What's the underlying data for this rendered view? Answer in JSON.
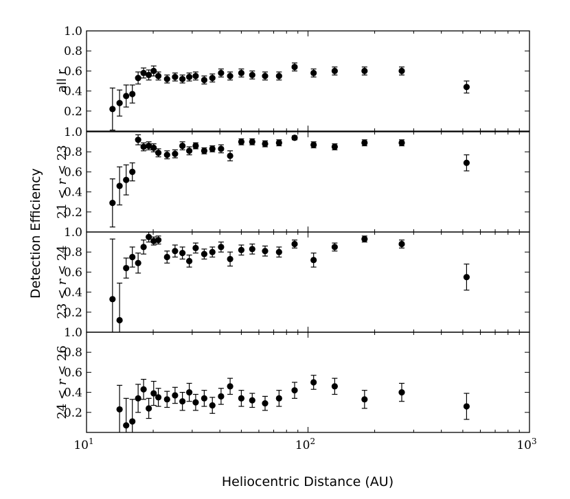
{
  "chart_data": {
    "type": "scatter",
    "xlabel": "Heliocentric Distance (AU)",
    "ylabel": "Detection Efficiency",
    "xscale": "log",
    "xlim": [
      10,
      1000
    ],
    "xticks": [
      10,
      100,
      1000
    ],
    "xtick_labels": [
      "10",
      "10",
      "10"
    ],
    "xtick_exponents": [
      "1",
      "2",
      "3"
    ],
    "grid": false,
    "panels": [
      {
        "ylabel": "all r",
        "ylim": [
          0.0,
          1.0
        ],
        "yticks": [
          "0.2",
          "0.4",
          "0.6",
          "0.8",
          "1.0"
        ],
        "x": [
          13.1,
          14.1,
          15.1,
          16.1,
          17.1,
          18.1,
          19.1,
          20.1,
          21.1,
          23.1,
          25.1,
          27.1,
          29.1,
          31.1,
          34.0,
          37.0,
          40.5,
          44.5,
          50.0,
          56.0,
          64.0,
          74.0,
          87.0,
          106.0,
          132.0,
          180.0,
          265.0,
          520.0
        ],
        "y": [
          0.22,
          0.28,
          0.35,
          0.37,
          0.53,
          0.58,
          0.56,
          0.6,
          0.55,
          0.52,
          0.54,
          0.52,
          0.54,
          0.55,
          0.51,
          0.53,
          0.58,
          0.55,
          0.58,
          0.56,
          0.55,
          0.55,
          0.64,
          0.58,
          0.6,
          0.6,
          0.6,
          0.44
        ],
        "err": [
          0.21,
          0.13,
          0.11,
          0.09,
          0.06,
          0.05,
          0.05,
          0.05,
          0.04,
          0.04,
          0.04,
          0.04,
          0.04,
          0.04,
          0.04,
          0.04,
          0.04,
          0.04,
          0.04,
          0.04,
          0.04,
          0.04,
          0.04,
          0.04,
          0.04,
          0.04,
          0.04,
          0.06
        ]
      },
      {
        "ylabel_parts": [
          "21",
          "<",
          "r",
          "<",
          "23"
        ],
        "ylim": [
          0.0,
          1.0
        ],
        "yticks": [
          "0.2",
          "0.4",
          "0.6",
          "0.8",
          "1.0"
        ],
        "x": [
          13.1,
          14.1,
          15.1,
          16.1,
          17.1,
          18.1,
          19.1,
          20.1,
          21.1,
          23.1,
          25.1,
          27.1,
          29.1,
          31.1,
          34.0,
          37.0,
          40.5,
          44.5,
          50.0,
          56.0,
          64.0,
          74.0,
          87.0,
          106.0,
          132.0,
          180.0,
          265.0,
          520.0
        ],
        "y": [
          0.29,
          0.46,
          0.52,
          0.6,
          0.92,
          0.85,
          0.86,
          0.84,
          0.79,
          0.77,
          0.78,
          0.86,
          0.81,
          0.86,
          0.81,
          0.83,
          0.83,
          0.76,
          0.9,
          0.9,
          0.88,
          0.89,
          0.94,
          0.87,
          0.85,
          0.89,
          0.89,
          0.69
        ],
        "err": [
          0.24,
          0.19,
          0.15,
          0.09,
          0.05,
          0.04,
          0.04,
          0.04,
          0.04,
          0.04,
          0.04,
          0.04,
          0.04,
          0.03,
          0.03,
          0.03,
          0.04,
          0.05,
          0.03,
          0.03,
          0.03,
          0.03,
          0.02,
          0.03,
          0.03,
          0.03,
          0.03,
          0.08
        ]
      },
      {
        "ylabel_parts": [
          "23",
          "<",
          "r",
          "<",
          "24"
        ],
        "ylim": [
          0.0,
          1.0
        ],
        "yticks": [
          "0.2",
          "0.4",
          "0.6",
          "0.8",
          "1.0"
        ],
        "x": [
          13.1,
          14.1,
          15.1,
          16.1,
          17.1,
          18.1,
          19.1,
          20.1,
          21.1,
          23.1,
          25.1,
          27.1,
          29.1,
          31.1,
          34.0,
          37.0,
          40.5,
          44.5,
          50.0,
          56.0,
          64.0,
          74.0,
          87.0,
          106.0,
          132.0,
          180.0,
          265.0,
          520.0
        ],
        "y": [
          0.33,
          0.12,
          0.64,
          0.75,
          0.69,
          0.85,
          0.95,
          0.91,
          0.92,
          0.75,
          0.81,
          0.79,
          0.71,
          0.84,
          0.78,
          0.8,
          0.85,
          0.73,
          0.82,
          0.83,
          0.81,
          0.8,
          0.88,
          0.72,
          0.85,
          0.93,
          0.88,
          0.55
        ],
        "err": [
          0.6,
          0.37,
          0.1,
          0.1,
          0.1,
          0.07,
          0.05,
          0.04,
          0.04,
          0.06,
          0.06,
          0.06,
          0.06,
          0.05,
          0.05,
          0.05,
          0.05,
          0.07,
          0.05,
          0.05,
          0.05,
          0.05,
          0.04,
          0.07,
          0.04,
          0.03,
          0.04,
          0.13
        ]
      },
      {
        "ylabel_parts": [
          "24",
          "<",
          "r",
          "<",
          "26"
        ],
        "ylim": [
          0.0,
          1.0
        ],
        "yticks": [
          "0.2",
          "0.4",
          "0.6",
          "0.8",
          "1.0"
        ],
        "x": [
          14.1,
          15.1,
          16.1,
          17.1,
          18.1,
          19.1,
          20.1,
          21.1,
          23.1,
          25.1,
          27.1,
          29.1,
          31.1,
          34.0,
          37.0,
          40.5,
          44.5,
          50.0,
          56.0,
          64.0,
          74.0,
          87.0,
          106.0,
          132.0,
          180.0,
          265.0,
          520.0
        ],
        "y": [
          0.23,
          0.07,
          0.11,
          0.34,
          0.43,
          0.24,
          0.39,
          0.35,
          0.33,
          0.37,
          0.31,
          0.4,
          0.3,
          0.34,
          0.27,
          0.36,
          0.46,
          0.34,
          0.32,
          0.29,
          0.34,
          0.42,
          0.5,
          0.46,
          0.33,
          0.4,
          0.26
        ],
        "err": [
          0.24,
          0.27,
          0.22,
          0.14,
          0.1,
          0.1,
          0.12,
          0.09,
          0.08,
          0.08,
          0.09,
          0.09,
          0.08,
          0.08,
          0.08,
          0.08,
          0.08,
          0.08,
          0.07,
          0.07,
          0.08,
          0.08,
          0.07,
          0.08,
          0.09,
          0.09,
          0.13
        ]
      }
    ]
  }
}
